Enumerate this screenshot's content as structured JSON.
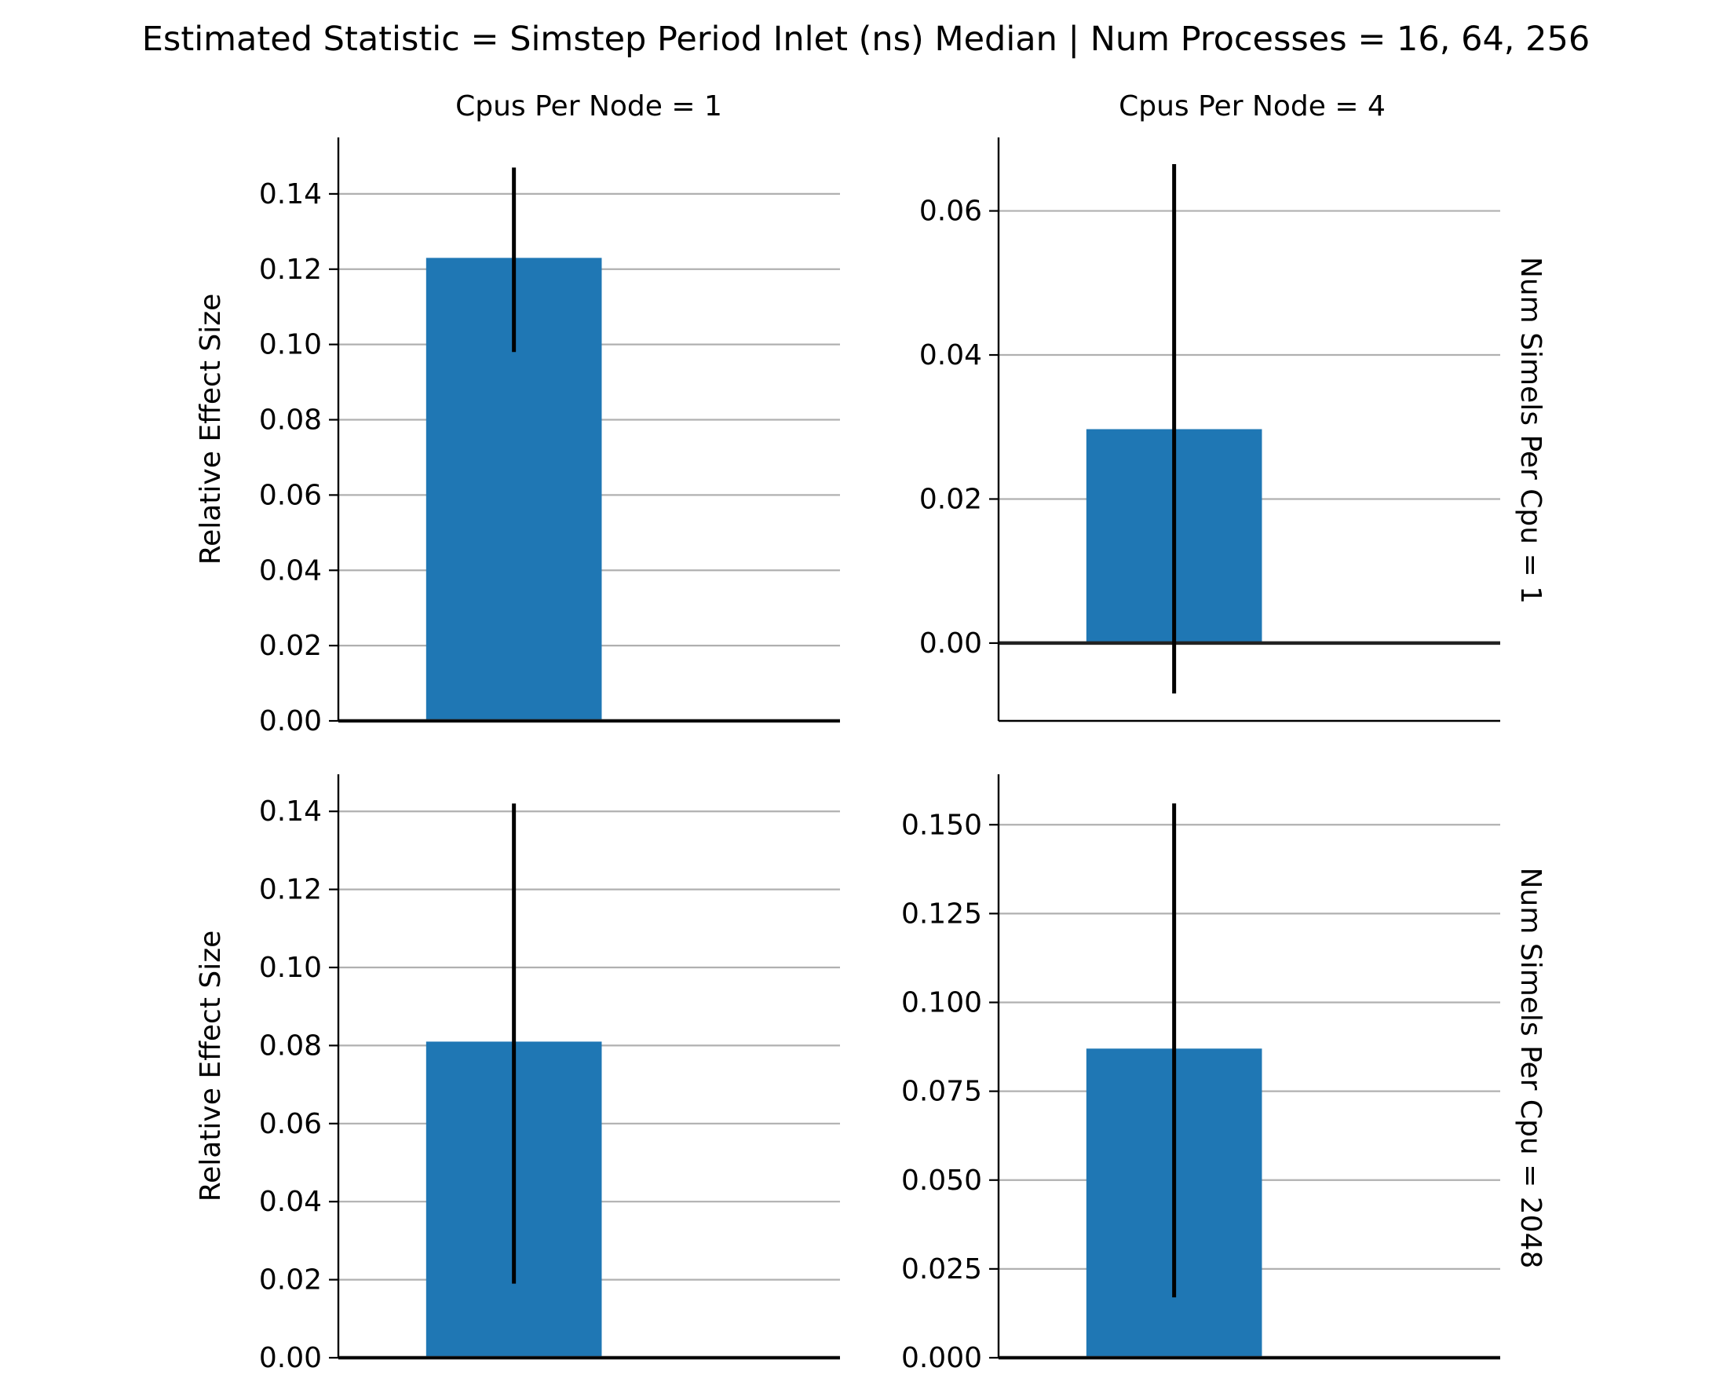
{
  "title": "Estimated Statistic = Simstep Period Inlet (ns) Median | Num Processes = 16, 64, 256",
  "col_titles": [
    "Cpus Per Node = 1",
    "Cpus Per Node = 4"
  ],
  "row_titles": [
    "Num Simels Per Cpu = 1",
    "Num Simels Per Cpu = 2048"
  ],
  "colors": {
    "bar": "#1f77b4",
    "grid": "#b0b0b0",
    "errorbar": "#000000"
  },
  "chart_data": [
    {
      "type": "bar",
      "row": 0,
      "col": 0,
      "ylabel": "Relative Effect Size",
      "ylim": [
        0,
        0.155
      ],
      "yticks": [
        0,
        0.02,
        0.04,
        0.06,
        0.08,
        0.1,
        0.12,
        0.14
      ],
      "ytick_labels": [
        "0.00",
        "0.02",
        "0.04",
        "0.06",
        "0.08",
        "0.10",
        "0.12",
        "0.14"
      ],
      "values": [
        0.123
      ],
      "error_low": [
        0.098
      ],
      "error_high": [
        0.147
      ],
      "grid": true
    },
    {
      "type": "bar",
      "row": 0,
      "col": 1,
      "ylabel": "",
      "ylim": [
        -0.0108,
        0.0702
      ],
      "yticks": [
        0,
        0.02,
        0.04,
        0.06
      ],
      "ytick_labels": [
        "0.00",
        "0.02",
        "0.04",
        "0.06"
      ],
      "values": [
        0.0297
      ],
      "error_low": [
        -0.007
      ],
      "error_high": [
        0.0665
      ],
      "grid": true
    },
    {
      "type": "bar",
      "row": 1,
      "col": 0,
      "ylabel": "Relative Effect Size",
      "ylim": [
        0,
        0.1495
      ],
      "yticks": [
        0,
        0.02,
        0.04,
        0.06,
        0.08,
        0.1,
        0.12,
        0.14
      ],
      "ytick_labels": [
        "0.00",
        "0.02",
        "0.04",
        "0.06",
        "0.08",
        "0.10",
        "0.12",
        "0.14"
      ],
      "values": [
        0.081
      ],
      "error_low": [
        0.019
      ],
      "error_high": [
        0.142
      ],
      "grid": true
    },
    {
      "type": "bar",
      "row": 1,
      "col": 1,
      "ylabel": "",
      "ylim": [
        0,
        0.1642
      ],
      "yticks": [
        0,
        0.025,
        0.05,
        0.075,
        0.1,
        0.125,
        0.15
      ],
      "ytick_labels": [
        "0.000",
        "0.025",
        "0.050",
        "0.075",
        "0.100",
        "0.125",
        "0.150"
      ],
      "values": [
        0.087
      ],
      "error_low": [
        0.017
      ],
      "error_high": [
        0.156
      ],
      "grid": true
    }
  ]
}
